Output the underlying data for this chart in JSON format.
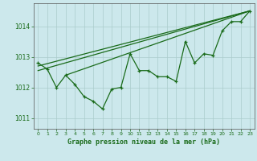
{
  "x": [
    0,
    1,
    2,
    3,
    4,
    5,
    6,
    7,
    8,
    9,
    10,
    11,
    12,
    13,
    14,
    15,
    16,
    17,
    18,
    19,
    20,
    21,
    22,
    23
  ],
  "y": [
    1012.8,
    1012.6,
    1012.0,
    1012.4,
    1012.1,
    1011.7,
    1011.55,
    1011.3,
    1011.95,
    1012.0,
    1013.1,
    1012.55,
    1012.55,
    1012.35,
    1012.35,
    1012.2,
    1013.5,
    1012.8,
    1013.1,
    1013.05,
    1013.85,
    1014.15,
    1014.15,
    1014.5
  ],
  "trend_lines": [
    [
      0,
      1012.55,
      23,
      1014.5
    ],
    [
      3,
      1012.4,
      23,
      1014.5
    ],
    [
      0,
      1012.7,
      23,
      1014.5
    ]
  ],
  "bg_color": "#cce8ec",
  "grid_color": "#aacccc",
  "line_color": "#1a6b1a",
  "xlabel": "Graphe pression niveau de la mer (hPa)",
  "yticks": [
    1011,
    1012,
    1013,
    1014
  ],
  "xticks": [
    0,
    1,
    2,
    3,
    4,
    5,
    6,
    7,
    8,
    9,
    10,
    11,
    12,
    13,
    14,
    15,
    16,
    17,
    18,
    19,
    20,
    21,
    22,
    23
  ],
  "ylim": [
    1010.65,
    1014.75
  ],
  "xlim": [
    -0.5,
    23.5
  ]
}
